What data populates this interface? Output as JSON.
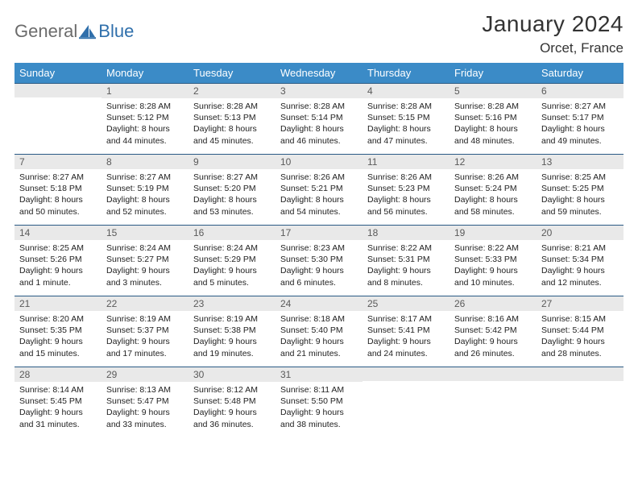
{
  "logo": {
    "text1": "General",
    "text2": "Blue"
  },
  "title": "January 2024",
  "location": "Orcet, France",
  "colors": {
    "header_bg": "#3b8bc7",
    "header_text": "#ffffff",
    "daynum_bg": "#e9e9e9",
    "daynum_text": "#5a5a5a",
    "cell_border": "#2a5a85",
    "body_text": "#222222",
    "logo_grey": "#6b6b6b",
    "logo_blue": "#2f6fab"
  },
  "dayNames": [
    "Sunday",
    "Monday",
    "Tuesday",
    "Wednesday",
    "Thursday",
    "Friday",
    "Saturday"
  ],
  "weeks": [
    [
      {
        "n": "",
        "lines": []
      },
      {
        "n": "1",
        "lines": [
          "Sunrise: 8:28 AM",
          "Sunset: 5:12 PM",
          "Daylight: 8 hours",
          "and 44 minutes."
        ]
      },
      {
        "n": "2",
        "lines": [
          "Sunrise: 8:28 AM",
          "Sunset: 5:13 PM",
          "Daylight: 8 hours",
          "and 45 minutes."
        ]
      },
      {
        "n": "3",
        "lines": [
          "Sunrise: 8:28 AM",
          "Sunset: 5:14 PM",
          "Daylight: 8 hours",
          "and 46 minutes."
        ]
      },
      {
        "n": "4",
        "lines": [
          "Sunrise: 8:28 AM",
          "Sunset: 5:15 PM",
          "Daylight: 8 hours",
          "and 47 minutes."
        ]
      },
      {
        "n": "5",
        "lines": [
          "Sunrise: 8:28 AM",
          "Sunset: 5:16 PM",
          "Daylight: 8 hours",
          "and 48 minutes."
        ]
      },
      {
        "n": "6",
        "lines": [
          "Sunrise: 8:27 AM",
          "Sunset: 5:17 PM",
          "Daylight: 8 hours",
          "and 49 minutes."
        ]
      }
    ],
    [
      {
        "n": "7",
        "lines": [
          "Sunrise: 8:27 AM",
          "Sunset: 5:18 PM",
          "Daylight: 8 hours",
          "and 50 minutes."
        ]
      },
      {
        "n": "8",
        "lines": [
          "Sunrise: 8:27 AM",
          "Sunset: 5:19 PM",
          "Daylight: 8 hours",
          "and 52 minutes."
        ]
      },
      {
        "n": "9",
        "lines": [
          "Sunrise: 8:27 AM",
          "Sunset: 5:20 PM",
          "Daylight: 8 hours",
          "and 53 minutes."
        ]
      },
      {
        "n": "10",
        "lines": [
          "Sunrise: 8:26 AM",
          "Sunset: 5:21 PM",
          "Daylight: 8 hours",
          "and 54 minutes."
        ]
      },
      {
        "n": "11",
        "lines": [
          "Sunrise: 8:26 AM",
          "Sunset: 5:23 PM",
          "Daylight: 8 hours",
          "and 56 minutes."
        ]
      },
      {
        "n": "12",
        "lines": [
          "Sunrise: 8:26 AM",
          "Sunset: 5:24 PM",
          "Daylight: 8 hours",
          "and 58 minutes."
        ]
      },
      {
        "n": "13",
        "lines": [
          "Sunrise: 8:25 AM",
          "Sunset: 5:25 PM",
          "Daylight: 8 hours",
          "and 59 minutes."
        ]
      }
    ],
    [
      {
        "n": "14",
        "lines": [
          "Sunrise: 8:25 AM",
          "Sunset: 5:26 PM",
          "Daylight: 9 hours",
          "and 1 minute."
        ]
      },
      {
        "n": "15",
        "lines": [
          "Sunrise: 8:24 AM",
          "Sunset: 5:27 PM",
          "Daylight: 9 hours",
          "and 3 minutes."
        ]
      },
      {
        "n": "16",
        "lines": [
          "Sunrise: 8:24 AM",
          "Sunset: 5:29 PM",
          "Daylight: 9 hours",
          "and 5 minutes."
        ]
      },
      {
        "n": "17",
        "lines": [
          "Sunrise: 8:23 AM",
          "Sunset: 5:30 PM",
          "Daylight: 9 hours",
          "and 6 minutes."
        ]
      },
      {
        "n": "18",
        "lines": [
          "Sunrise: 8:22 AM",
          "Sunset: 5:31 PM",
          "Daylight: 9 hours",
          "and 8 minutes."
        ]
      },
      {
        "n": "19",
        "lines": [
          "Sunrise: 8:22 AM",
          "Sunset: 5:33 PM",
          "Daylight: 9 hours",
          "and 10 minutes."
        ]
      },
      {
        "n": "20",
        "lines": [
          "Sunrise: 8:21 AM",
          "Sunset: 5:34 PM",
          "Daylight: 9 hours",
          "and 12 minutes."
        ]
      }
    ],
    [
      {
        "n": "21",
        "lines": [
          "Sunrise: 8:20 AM",
          "Sunset: 5:35 PM",
          "Daylight: 9 hours",
          "and 15 minutes."
        ]
      },
      {
        "n": "22",
        "lines": [
          "Sunrise: 8:19 AM",
          "Sunset: 5:37 PM",
          "Daylight: 9 hours",
          "and 17 minutes."
        ]
      },
      {
        "n": "23",
        "lines": [
          "Sunrise: 8:19 AM",
          "Sunset: 5:38 PM",
          "Daylight: 9 hours",
          "and 19 minutes."
        ]
      },
      {
        "n": "24",
        "lines": [
          "Sunrise: 8:18 AM",
          "Sunset: 5:40 PM",
          "Daylight: 9 hours",
          "and 21 minutes."
        ]
      },
      {
        "n": "25",
        "lines": [
          "Sunrise: 8:17 AM",
          "Sunset: 5:41 PM",
          "Daylight: 9 hours",
          "and 24 minutes."
        ]
      },
      {
        "n": "26",
        "lines": [
          "Sunrise: 8:16 AM",
          "Sunset: 5:42 PM",
          "Daylight: 9 hours",
          "and 26 minutes."
        ]
      },
      {
        "n": "27",
        "lines": [
          "Sunrise: 8:15 AM",
          "Sunset: 5:44 PM",
          "Daylight: 9 hours",
          "and 28 minutes."
        ]
      }
    ],
    [
      {
        "n": "28",
        "lines": [
          "Sunrise: 8:14 AM",
          "Sunset: 5:45 PM",
          "Daylight: 9 hours",
          "and 31 minutes."
        ]
      },
      {
        "n": "29",
        "lines": [
          "Sunrise: 8:13 AM",
          "Sunset: 5:47 PM",
          "Daylight: 9 hours",
          "and 33 minutes."
        ]
      },
      {
        "n": "30",
        "lines": [
          "Sunrise: 8:12 AM",
          "Sunset: 5:48 PM",
          "Daylight: 9 hours",
          "and 36 minutes."
        ]
      },
      {
        "n": "31",
        "lines": [
          "Sunrise: 8:11 AM",
          "Sunset: 5:50 PM",
          "Daylight: 9 hours",
          "and 38 minutes."
        ]
      },
      {
        "n": "",
        "lines": []
      },
      {
        "n": "",
        "lines": []
      },
      {
        "n": "",
        "lines": []
      }
    ]
  ]
}
